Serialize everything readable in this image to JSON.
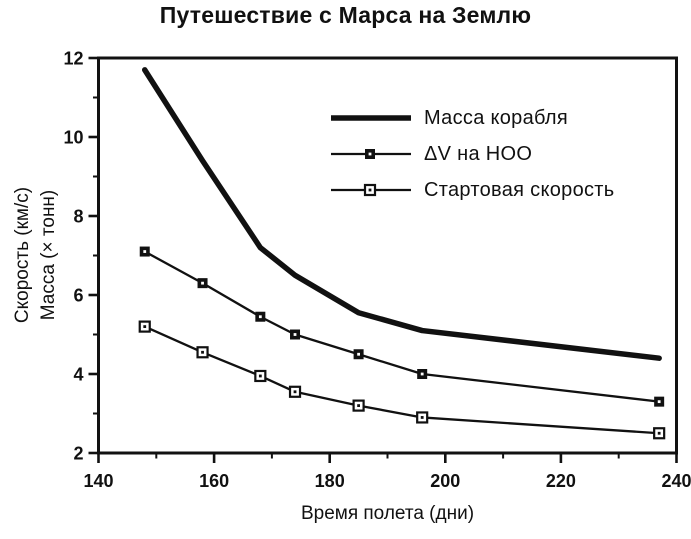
{
  "colors": {
    "ink": "#111111",
    "background": "#ffffff"
  },
  "chart_data": {
    "type": "line",
    "title": "Путешествие с Марса на Землю",
    "xlabel": "Время полета (дни)",
    "ylabel_lines": [
      "Скорость (км/с)",
      "Масса (× тонн)"
    ],
    "xlim": [
      140,
      240
    ],
    "ylim": [
      2,
      12
    ],
    "x_major_ticks": [
      140,
      160,
      180,
      200,
      220,
      240
    ],
    "x_minor_ticks": [
      150,
      170,
      190,
      210,
      230
    ],
    "y_major_ticks": [
      2,
      4,
      6,
      8,
      10,
      12
    ],
    "y_minor_ticks": [
      3,
      5,
      7,
      9,
      11
    ],
    "grid": false,
    "legend_position": "inside-upper-right",
    "x": [
      148,
      158,
      168,
      174,
      185,
      196,
      237
    ],
    "series": [
      {
        "name": "Масса корабля",
        "marker": "none",
        "line": "thick",
        "values": [
          11.7,
          9.4,
          7.2,
          6.5,
          5.55,
          5.1,
          4.4
        ]
      },
      {
        "name": "ΔV на НОО",
        "marker": "filled-square",
        "line": "thin",
        "values": [
          7.1,
          6.3,
          5.45,
          5.0,
          4.5,
          4.0,
          3.3
        ]
      },
      {
        "name": "Стартовая скорость",
        "marker": "open-square",
        "line": "thin",
        "values": [
          5.2,
          4.55,
          3.95,
          3.55,
          3.2,
          2.9,
          2.5
        ]
      }
    ]
  }
}
